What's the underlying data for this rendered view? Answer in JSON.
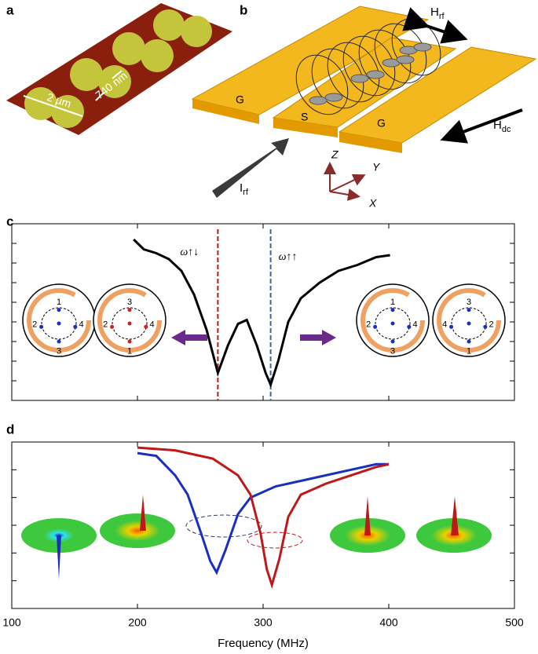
{
  "panels": {
    "a": "a",
    "b": "b",
    "c": "c",
    "d": "d"
  },
  "panel_a": {
    "scale_width": "2 µm",
    "gap": "740 nm"
  },
  "panel_b": {
    "ground_left": "G",
    "signal": "S",
    "ground_right": "G",
    "h_rf": {
      "symbol": "H",
      "subscript": "rf"
    },
    "h_dc": {
      "symbol": "H",
      "subscript": "dc"
    },
    "i_rf": {
      "symbol": "I",
      "subscript": "rf"
    },
    "axes": [
      "Z",
      "Y",
      "X"
    ]
  },
  "panel_c": {
    "xlim": [
      100,
      500
    ],
    "ylim": [
      0,
      9
    ],
    "yticks": [
      1,
      2,
      3,
      4,
      5,
      6,
      7,
      8
    ],
    "curve": {
      "color": "#000000",
      "x": [
        197,
        205,
        215,
        225,
        235,
        245,
        255,
        264,
        272,
        280,
        287,
        295,
        302,
        306,
        312,
        320,
        330,
        345,
        360,
        375,
        390,
        401
      ],
      "values": [
        8.2,
        7.7,
        7.5,
        7.2,
        6.6,
        5.4,
        3.6,
        1.4,
        2.8,
        3.9,
        4.1,
        2.8,
        1.4,
        0.8,
        2.0,
        4.0,
        5.2,
        6.0,
        6.6,
        6.9,
        7.3,
        7.4
      ]
    },
    "modes": [
      {
        "label": "ω↑↓",
        "x": 264,
        "color": "#b01c1c"
      },
      {
        "label": "ω↑↑",
        "x": 306,
        "color": "#3c6a96"
      }
    ],
    "vortex_labels": [
      [
        "1",
        "2",
        "4",
        "3"
      ],
      [
        "3",
        "2",
        "4",
        "1"
      ],
      [
        "1",
        "2",
        "4",
        "3"
      ],
      [
        "3",
        "4",
        "2",
        "1"
      ]
    ]
  },
  "panel_d": {
    "xlim": [
      100,
      500
    ],
    "xticks": [
      100,
      200,
      300,
      400,
      500
    ],
    "ylim": [
      0,
      6
    ],
    "yticks": [
      1,
      2,
      3,
      4,
      5
    ],
    "xlabel": "Frequency (MHz)",
    "series": [
      {
        "color": "#1a2fc0",
        "x": [
          200,
          215,
          230,
          240,
          250,
          258,
          263,
          270,
          280,
          290,
          310,
          330,
          350,
          370,
          390,
          400
        ],
        "values": [
          5.6,
          5.5,
          4.8,
          4.1,
          2.8,
          1.7,
          1.3,
          2.1,
          3.4,
          4.0,
          4.4,
          4.6,
          4.8,
          5.0,
          5.2,
          5.2
        ]
      },
      {
        "color": "#c01818",
        "x": [
          200,
          230,
          260,
          280,
          290,
          298,
          303,
          307,
          313,
          320,
          330,
          350,
          370,
          390,
          400
        ],
        "values": [
          5.8,
          5.7,
          5.4,
          4.8,
          4.1,
          2.7,
          1.4,
          0.85,
          1.8,
          3.3,
          4.1,
          4.5,
          4.8,
          5.1,
          5.2
        ]
      }
    ]
  }
}
